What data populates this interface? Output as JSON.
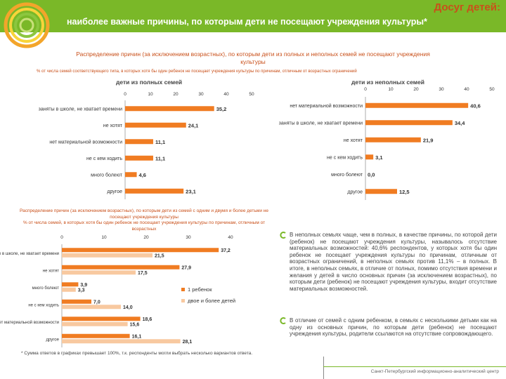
{
  "header": {
    "title": "Досуг детей:",
    "subtitle": "наиболее важные причины, по которым дети не посещают учреждения культуры*"
  },
  "section1": {
    "title": "Распределение причин (за исключением возрастных), по которым дети из полных и неполных семей не посещают учреждения культуры",
    "note": "% от числа семей соответствующего типа, в которых хотя бы один ребенок не посещает учреждения культуры по причинам, отличным от возрастных ограничений"
  },
  "chart_data": [
    {
      "type": "bar",
      "title": "дети из полных семей",
      "categories": [
        "заняты в школе, не хватает времени",
        "не хотят",
        "нет материальной возможности",
        "не с кем ходить",
        "много болеют",
        "другое"
      ],
      "values": [
        35.2,
        24.1,
        11.1,
        11.1,
        4.6,
        23.1
      ],
      "value_labels": [
        "35,2",
        "24,1",
        "11,1",
        "11,1",
        "4,6",
        "23,1"
      ],
      "ticks": [
        "0",
        "10",
        "20",
        "30",
        "40",
        "50"
      ],
      "xlim": [
        0,
        50
      ]
    },
    {
      "type": "bar",
      "title": "дети из неполных семей",
      "categories": [
        "нет материальной возможности",
        "заняты в школе, не хватает времени",
        "не хотят",
        "не с кем ходить",
        "много болеют",
        "другое"
      ],
      "values": [
        40.6,
        34.4,
        21.9,
        3.1,
        0.0,
        12.5
      ],
      "value_labels": [
        "40,6",
        "34,4",
        "21,9",
        "3,1",
        "0,0",
        "12,5"
      ],
      "ticks": [
        "0",
        "10",
        "20",
        "30",
        "40",
        "50"
      ],
      "xlim": [
        0,
        50
      ]
    },
    {
      "type": "bar",
      "title": "Распределение причин (за исключением возрастных), по которым дети из семей с одним и двумя и более детьми не посещают учреждения культуры",
      "note": "% от числа семей, в которых хотя бы один ребенок не посещает учреждения культуры по причинам, отличным от возрастных",
      "categories": [
        "заняты в школе, не хватает времени",
        "не хотят",
        "много болеют",
        "не с кем ходить",
        "нет материальной возможности",
        "другое"
      ],
      "ticks": [
        "0",
        "10",
        "20",
        "30",
        "40"
      ],
      "xlim": [
        0,
        40
      ],
      "series": [
        {
          "name": "1 ребенок",
          "color": "#f07c22",
          "values": [
            37.2,
            27.9,
            3.9,
            7.0,
            18.6,
            16.1
          ],
          "value_labels": [
            "37,2",
            "27,9",
            "3,9",
            "7,0",
            "18,6",
            "16,1"
          ]
        },
        {
          "name": "двое и более детей",
          "color": "#f8c9a0",
          "values": [
            21.5,
            17.5,
            3.3,
            14.0,
            15.6,
            28.1
          ],
          "value_labels": [
            "21,5",
            "17,5",
            "3,3",
            "14,0",
            "15,6",
            "28,1"
          ]
        }
      ]
    }
  ],
  "text": {
    "paragraph1": "В неполных семьях чаще, чем в полных, в качестве причины, по которой дети (ребенок) не посещают учреждения культуры, называлось отсутствие материальных возможностей: 40,6% респондентов, у которых хотя бы один ребенок не посещает учреждения культуры по причинам, отличным от возрастных ограничений, в неполных семьях против 11,1% – в полных. В итоге, в неполных семьях, в отличие от полных, помимо отсутствия времени и желания у детей в число основных причин (за исключением возрастных), по которым дети (ребенок) не посещают учреждения культуры, входит отсутствие материальных возможностей.",
    "paragraph2": "В отличие от семей с одним ребенком, в семьях с несколькими детьми как на одну из основных причин, по которым дети (ребенок) не посещают учреждения культуры, родители ссылаются на отсутствие сопровождающего."
  },
  "footnote": "* Сумма ответов в графиках превышает 100%, т.к. респонденты могли выбрать несколько вариантов ответа.",
  "source": "Санкт-Петербургский информационно-аналитический центр",
  "colors": {
    "accent": "#7ab828",
    "bar": "#f07c22",
    "bar_light": "#f8c9a0",
    "title": "#c9501a"
  }
}
